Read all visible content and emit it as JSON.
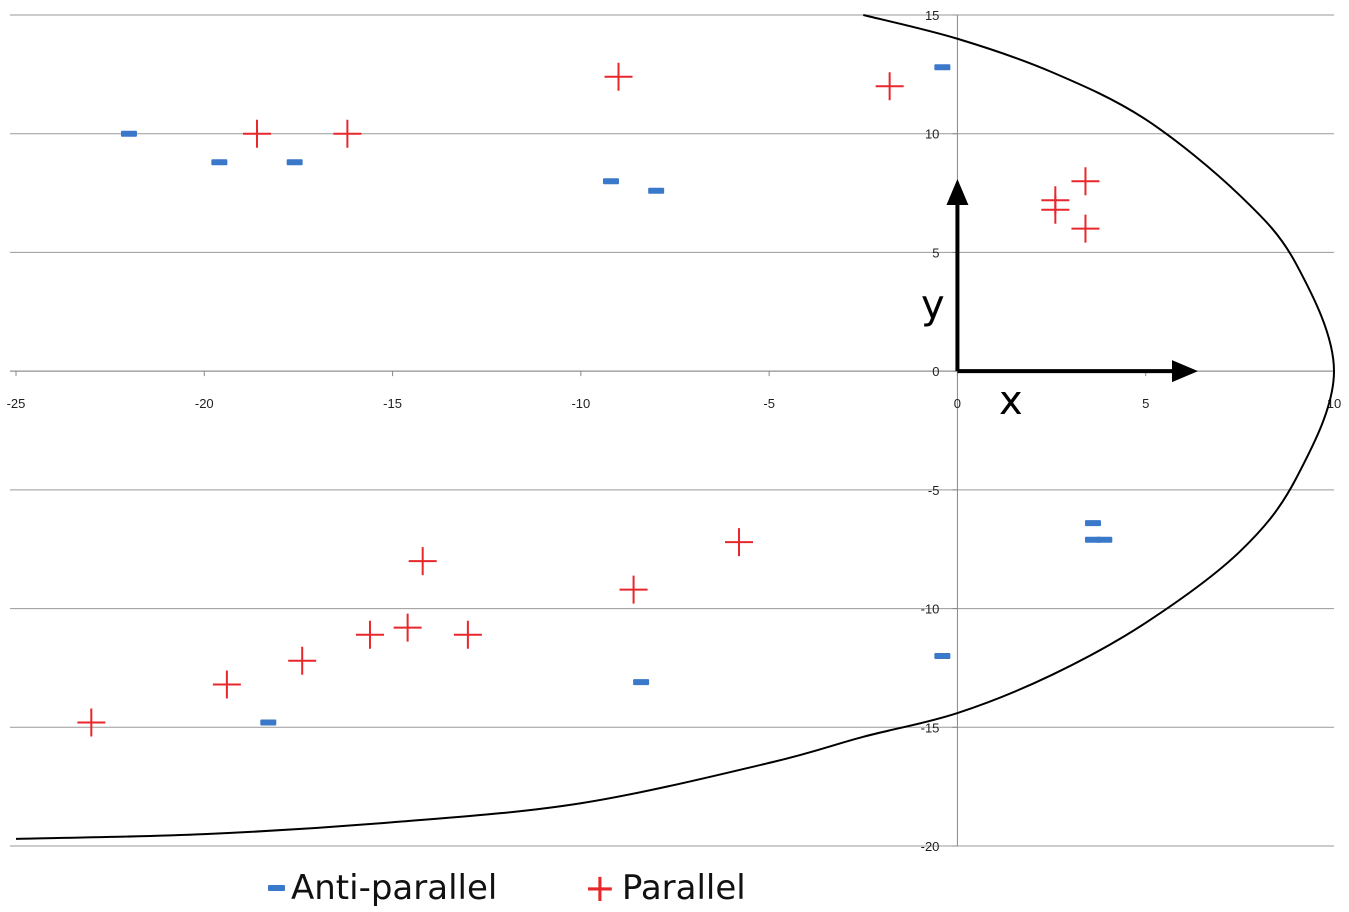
{
  "chart_data": {
    "type": "scatter",
    "title": "",
    "xlabel": "x",
    "ylabel": "y",
    "xlim": [
      -25,
      10
    ],
    "ylim": [
      -20,
      15
    ],
    "xticks": [
      -25,
      -20,
      -15,
      -10,
      -5,
      0,
      5,
      10
    ],
    "yticks": [
      15,
      10,
      5,
      0,
      -5,
      -10,
      -15,
      -20
    ],
    "grid": "horizontal",
    "legend_position": "bottom",
    "colors": {
      "anti": "#3a78c9",
      "parallel": "#e8272b",
      "curve": "#000000"
    },
    "series": [
      {
        "name": "Anti-parallel",
        "marker": "dash",
        "points": [
          [
            -22.0,
            10.0
          ],
          [
            -19.6,
            8.8
          ],
          [
            -17.6,
            8.8
          ],
          [
            -9.2,
            8.0
          ],
          [
            -8.0,
            7.6
          ],
          [
            -0.4,
            12.8
          ],
          [
            -18.3,
            -14.8
          ],
          [
            -8.4,
            -13.1
          ],
          [
            -0.4,
            -12.0
          ],
          [
            3.6,
            -6.4
          ],
          [
            3.6,
            -7.1
          ],
          [
            3.9,
            -7.1
          ]
        ]
      },
      {
        "name": "Parallel",
        "marker": "plus",
        "points": [
          [
            -18.6,
            10.0
          ],
          [
            -16.2,
            10.0
          ],
          [
            -9.0,
            12.4
          ],
          [
            -1.8,
            12.0
          ],
          [
            2.6,
            7.2
          ],
          [
            2.6,
            6.8
          ],
          [
            3.4,
            8.0
          ],
          [
            3.4,
            6.0
          ],
          [
            -23.0,
            -14.8
          ],
          [
            -19.4,
            -13.2
          ],
          [
            -17.4,
            -12.2
          ],
          [
            -15.6,
            -11.1
          ],
          [
            -14.6,
            -10.8
          ],
          [
            -14.2,
            -8.0
          ],
          [
            -13.0,
            -11.1
          ],
          [
            -8.6,
            -9.2
          ],
          [
            -5.8,
            -7.2
          ]
        ]
      },
      {
        "name": "",
        "marker": "line",
        "points": [
          [
            -2.5,
            15.0
          ],
          [
            0.0,
            14.0
          ],
          [
            2.5,
            12.6
          ],
          [
            5.0,
            10.6
          ],
          [
            7.5,
            7.4
          ],
          [
            9.0,
            4.5
          ],
          [
            10.0,
            0.0
          ],
          [
            9.0,
            -4.5
          ],
          [
            7.5,
            -7.6
          ],
          [
            5.0,
            -10.6
          ],
          [
            2.5,
            -12.8
          ],
          [
            0.0,
            -14.4
          ],
          [
            -2.5,
            -15.4
          ],
          [
            -5.0,
            -16.5
          ],
          [
            -10.0,
            -18.2
          ],
          [
            -15.0,
            -19.0
          ],
          [
            -20.0,
            -19.5
          ],
          [
            -25.0,
            -19.7
          ]
        ]
      }
    ]
  }
}
